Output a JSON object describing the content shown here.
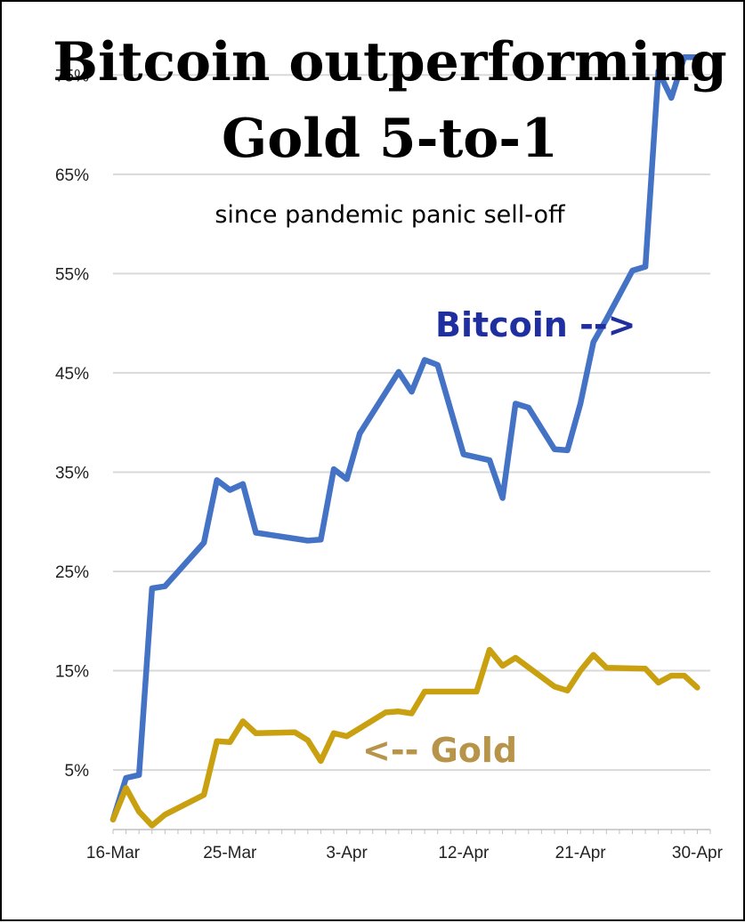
{
  "chart_data": {
    "type": "line",
    "title_line1": "Bitcoin outperforming",
    "title_line2": "Gold 5-to-1",
    "subtitle": "since pandemic panic sell-off",
    "x_tick_labels": [
      "16-Mar",
      "25-Mar",
      "3-Apr",
      "12-Apr",
      "21-Apr",
      "30-Apr"
    ],
    "x_tick_days": [
      0,
      9,
      18,
      27,
      36,
      45
    ],
    "y_tick_labels": [
      "5%",
      "15%",
      "25%",
      "35%",
      "45%",
      "55%",
      "65%",
      "75%"
    ],
    "y_tick_values": [
      5,
      15,
      25,
      35,
      45,
      55,
      65,
      75
    ],
    "ylim": [
      -1,
      77
    ],
    "xlim": [
      0,
      46
    ],
    "grid": true,
    "series": [
      {
        "name": "Bitcoin",
        "label": "Bitcoin -->",
        "color": "#4472C4",
        "label_color": "#1F2FA0",
        "x": [
          0,
          1,
          2,
          3,
          4,
          7,
          8,
          9,
          10,
          11,
          12,
          15,
          16,
          17,
          18,
          19,
          22,
          23,
          24,
          25,
          27,
          29,
          30,
          31,
          32,
          34,
          35,
          36,
          37,
          38,
          40,
          41,
          42,
          43,
          44,
          45
        ],
        "values": [
          0,
          4.2,
          4.5,
          23.3,
          23.5,
          27.9,
          34.2,
          33.2,
          33.8,
          28.9,
          28.7,
          28.1,
          28.2,
          35.3,
          34.3,
          38.9,
          45.1,
          43.1,
          46.3,
          45.8,
          36.8,
          36.2,
          32.4,
          41.9,
          41.5,
          37.3,
          37.2,
          41.9,
          48.1,
          50.4,
          55.3,
          55.7,
          75.4,
          72.7,
          76.8,
          76.8
        ]
      },
      {
        "name": "Gold",
        "label": "<-- Gold",
        "color": "#C9A00F",
        "label_color": "#B8944A",
        "x": [
          0,
          1,
          2,
          3,
          4,
          7,
          8,
          9,
          10,
          11,
          14,
          15,
          16,
          17,
          18,
          21,
          22,
          23,
          24,
          27,
          28,
          29,
          30,
          31,
          34,
          35,
          36,
          37,
          38,
          41,
          42,
          43,
          44,
          45
        ],
        "values": [
          0,
          3.2,
          0.8,
          -0.6,
          0.5,
          2.5,
          7.9,
          7.8,
          9.9,
          8.7,
          8.8,
          8.0,
          5.9,
          8.7,
          8.4,
          10.8,
          10.9,
          10.7,
          12.9,
          12.9,
          12.9,
          17.1,
          15.5,
          16.3,
          13.4,
          13.0,
          15.0,
          16.6,
          15.3,
          15.2,
          13.8,
          14.5,
          14.5,
          13.3
        ]
      }
    ]
  }
}
